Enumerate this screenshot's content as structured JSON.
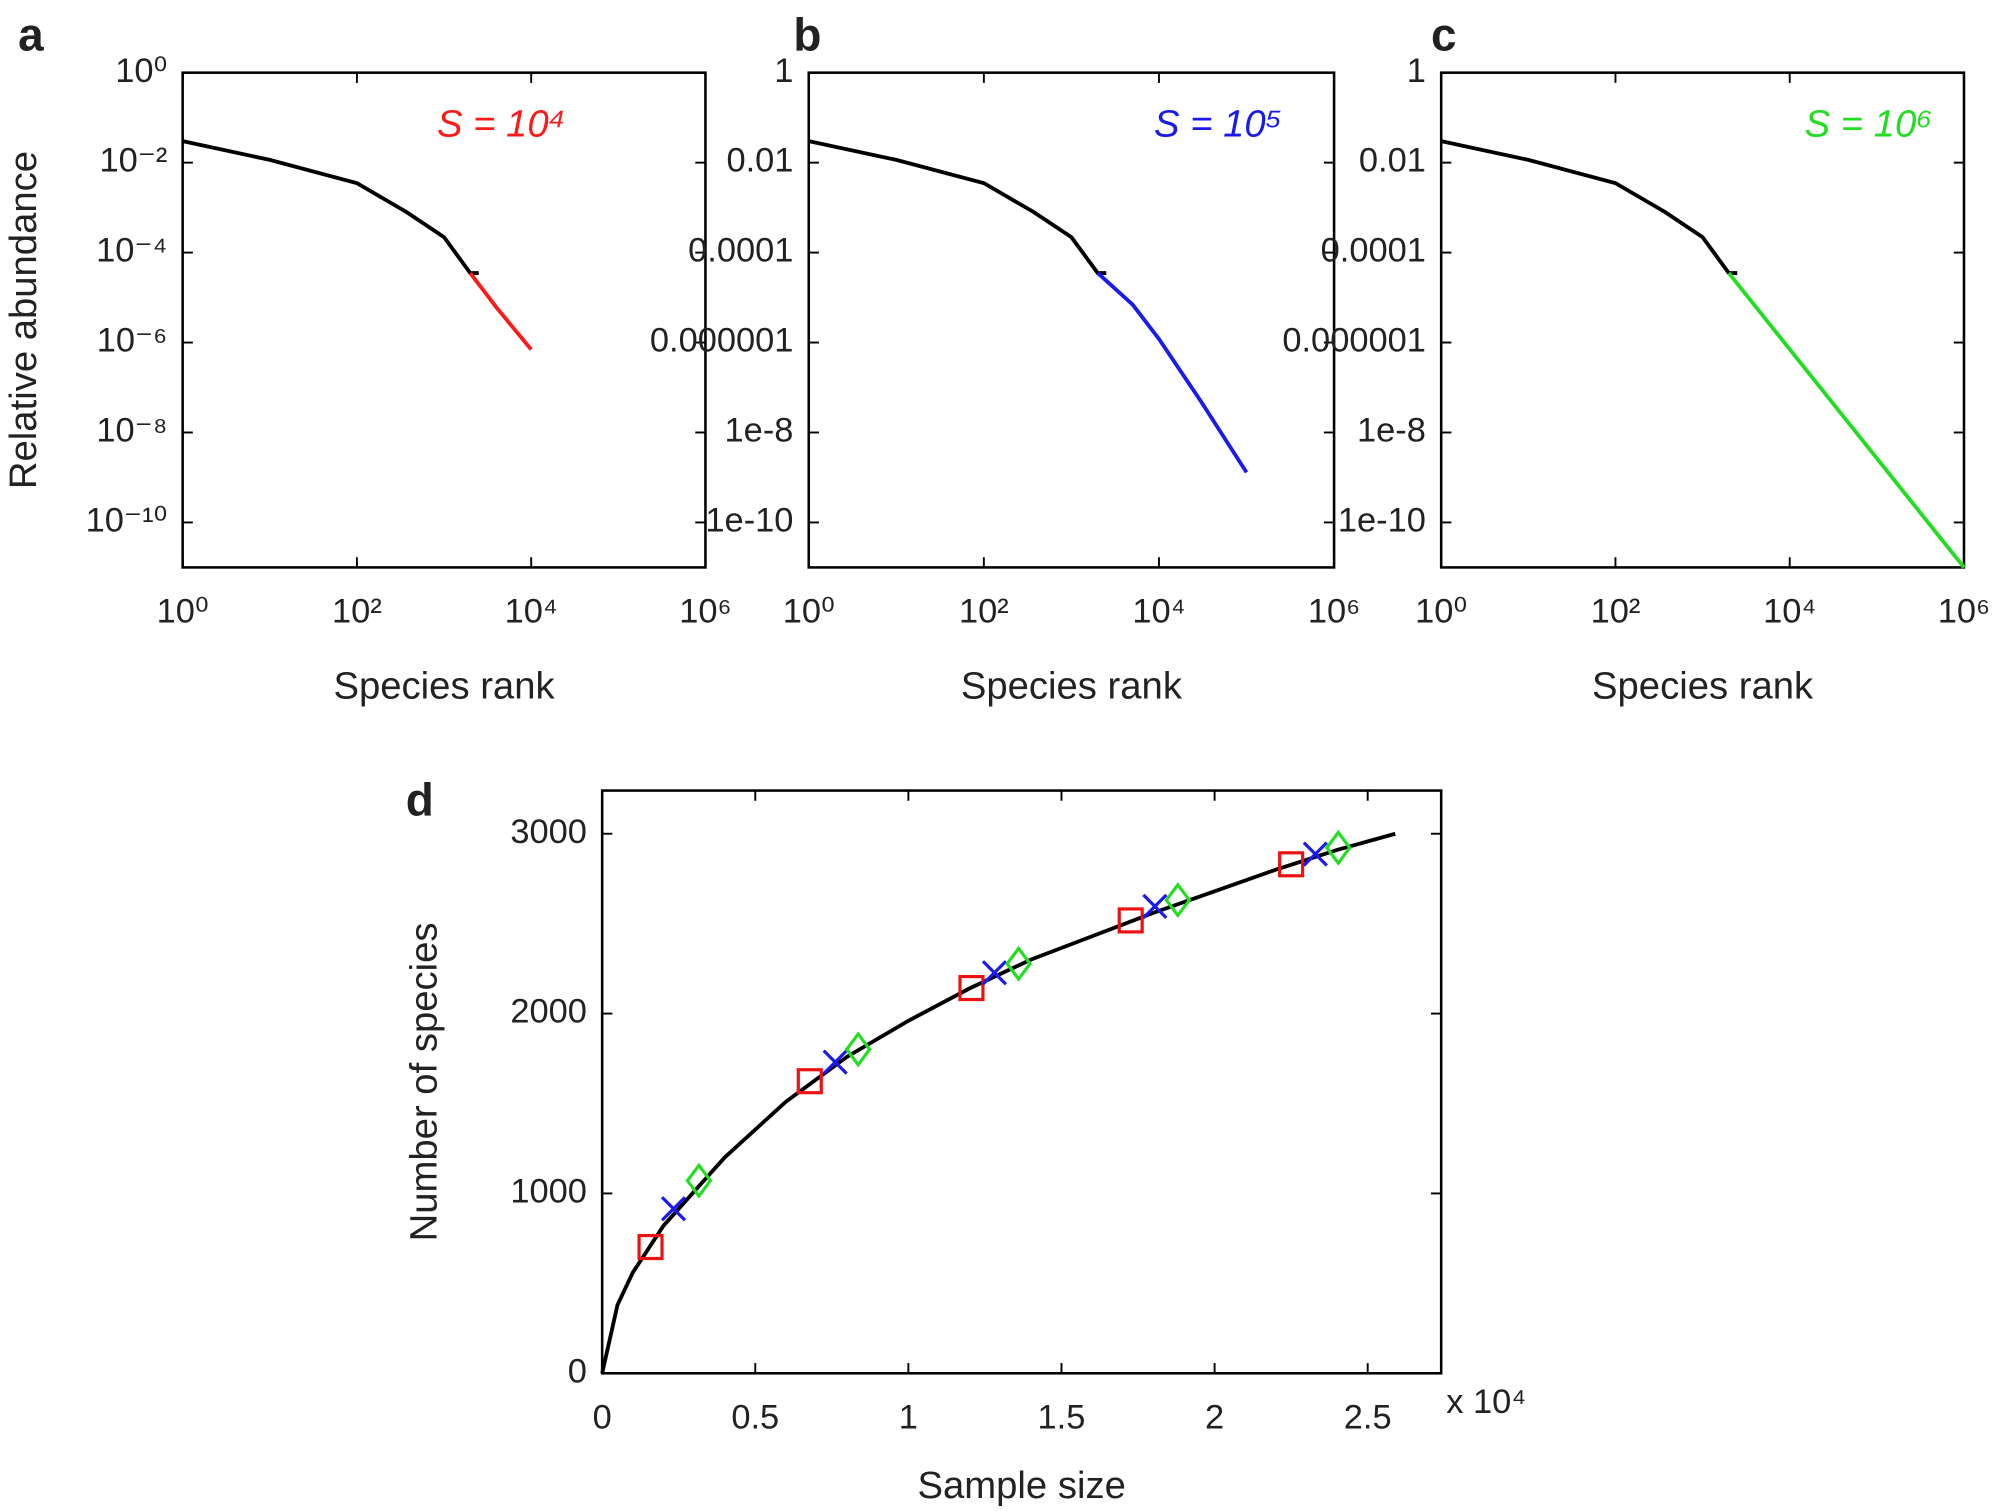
{
  "chart_data": [
    {
      "type": "line",
      "panel": "a",
      "xscale": "log",
      "yscale": "log",
      "x_label": "Species rank",
      "y_label": "Relative abundance",
      "annotation": "S = 10⁴",
      "xlim": [
        1,
        1000000
      ],
      "ylim": [
        1e-11,
        1
      ],
      "xticks": [
        {
          "value": 1,
          "label": "10⁰"
        },
        {
          "value": 100,
          "label": "10²"
        },
        {
          "value": 10000,
          "label": "10⁴"
        },
        {
          "value": 1000000,
          "label": "10⁶"
        }
      ],
      "yticks": [
        {
          "value": 1,
          "label": "10⁰"
        },
        {
          "value": 0.01,
          "label": "10⁻²"
        },
        {
          "value": 0.0001,
          "label": "10⁻⁴"
        },
        {
          "value": 1e-06,
          "label": "10⁻⁶"
        },
        {
          "value": 1e-08,
          "label": "10⁻⁸"
        },
        {
          "value": 1e-10,
          "label": "10⁻¹⁰"
        }
      ],
      "series": [
        {
          "color": "#000000",
          "x": [
            1,
            10,
            100,
            370,
            1000,
            2000,
            2500
          ],
          "values": [
            0.03,
            0.0115,
            0.0035,
            0.0008,
            0.00022,
            3.5e-05,
            3.5e-05
          ]
        },
        {
          "color": "#ff1a1a",
          "x": [
            2000,
            4000,
            10000
          ],
          "values": [
            3.5e-05,
            6e-06,
            7e-07
          ]
        }
      ]
    },
    {
      "type": "line",
      "panel": "b",
      "xscale": "log",
      "yscale": "log",
      "x_label": "Species rank",
      "annotation": "S = 10⁵",
      "xlim": [
        1,
        1000000
      ],
      "ylim": [
        1e-11,
        1
      ],
      "xticks": [
        {
          "value": 1,
          "label": "10⁰"
        },
        {
          "value": 100,
          "label": "10²"
        },
        {
          "value": 10000,
          "label": "10⁴"
        },
        {
          "value": 1000000,
          "label": "10⁶"
        }
      ],
      "yticks": [
        1,
        0.01,
        0.0001,
        1e-06,
        1e-08,
        1e-10
      ],
      "series": [
        {
          "color": "#000000",
          "x": [
            1,
            10,
            100,
            370,
            1000,
            2000,
            2500
          ],
          "values": [
            0.03,
            0.0115,
            0.0035,
            0.0008,
            0.00022,
            3.5e-05,
            3.5e-05
          ]
        },
        {
          "color": "#1a1aee",
          "x": [
            2000,
            5000,
            10000,
            30000,
            100000
          ],
          "values": [
            3.5e-05,
            7e-06,
            1.2e-06,
            5e-08,
            1.3e-09
          ]
        }
      ]
    },
    {
      "type": "line",
      "panel": "c",
      "xscale": "log",
      "yscale": "log",
      "x_label": "Species rank",
      "annotation": "S = 10⁶",
      "xlim": [
        1,
        1000000
      ],
      "ylim": [
        1e-11,
        1
      ],
      "xticks": [
        {
          "value": 1,
          "label": "10⁰"
        },
        {
          "value": 100,
          "label": "10²"
        },
        {
          "value": 10000,
          "label": "10⁴"
        },
        {
          "value": 1000000,
          "label": "10⁶"
        }
      ],
      "yticks": [
        1,
        0.01,
        0.0001,
        1e-06,
        1e-08,
        1e-10
      ],
      "series": [
        {
          "color": "#000000",
          "x": [
            1,
            10,
            100,
            370,
            1000,
            2000,
            2500
          ],
          "values": [
            0.03,
            0.0115,
            0.0035,
            0.0008,
            0.00022,
            3.5e-05,
            3.5e-05
          ]
        },
        {
          "color": "#22dd22",
          "x": [
            2000,
            1000000
          ],
          "values": [
            3.5e-05,
            1e-11
          ]
        }
      ]
    },
    {
      "type": "line",
      "panel": "d",
      "x_label": "Sample size",
      "y_label": "Number of species",
      "x_multiplier": "x 10⁴",
      "xlim": [
        0,
        27400
      ],
      "ylim": [
        0,
        3240
      ],
      "xticks": [
        0,
        {
          "value": 5000,
          "label": "0.5"
        },
        {
          "value": 10000,
          "label": "1"
        },
        {
          "value": 15000,
          "label": "1.5"
        },
        {
          "value": 20000,
          "label": "2"
        },
        {
          "value": 25000,
          "label": "2.5"
        }
      ],
      "yticks": [
        0,
        1000,
        2000,
        3000
      ],
      "series": [
        {
          "color": "#000000",
          "x": [
            0,
            500,
            1000,
            2000,
            4000,
            6000,
            8000,
            10000,
            12000,
            14000,
            16000,
            18000,
            20000,
            22000,
            24000,
            25900
          ],
          "values": [
            0,
            380,
            560,
            820,
            1200,
            1510,
            1760,
            1960,
            2140,
            2300,
            2430,
            2560,
            2680,
            2800,
            2910,
            3000
          ]
        },
        {
          "color": "#ee1111",
          "marker": "square",
          "x": [
            1580,
            6780,
            12060,
            17260,
            22500
          ],
          "values": [
            702,
            1624,
            2142,
            2518,
            2830
          ]
        },
        {
          "color": "#1a1aee",
          "marker": "x",
          "x": [
            2330,
            7610,
            12810,
            18050,
            23290
          ],
          "values": [
            915,
            1730,
            2227,
            2596,
            2887
          ]
        },
        {
          "color": "#22dd22",
          "marker": "diamond",
          "x": [
            3160,
            8360,
            13600,
            18800,
            24040
          ],
          "values": [
            1071,
            1801,
            2277,
            2631,
            2922
          ]
        }
      ]
    }
  ]
}
